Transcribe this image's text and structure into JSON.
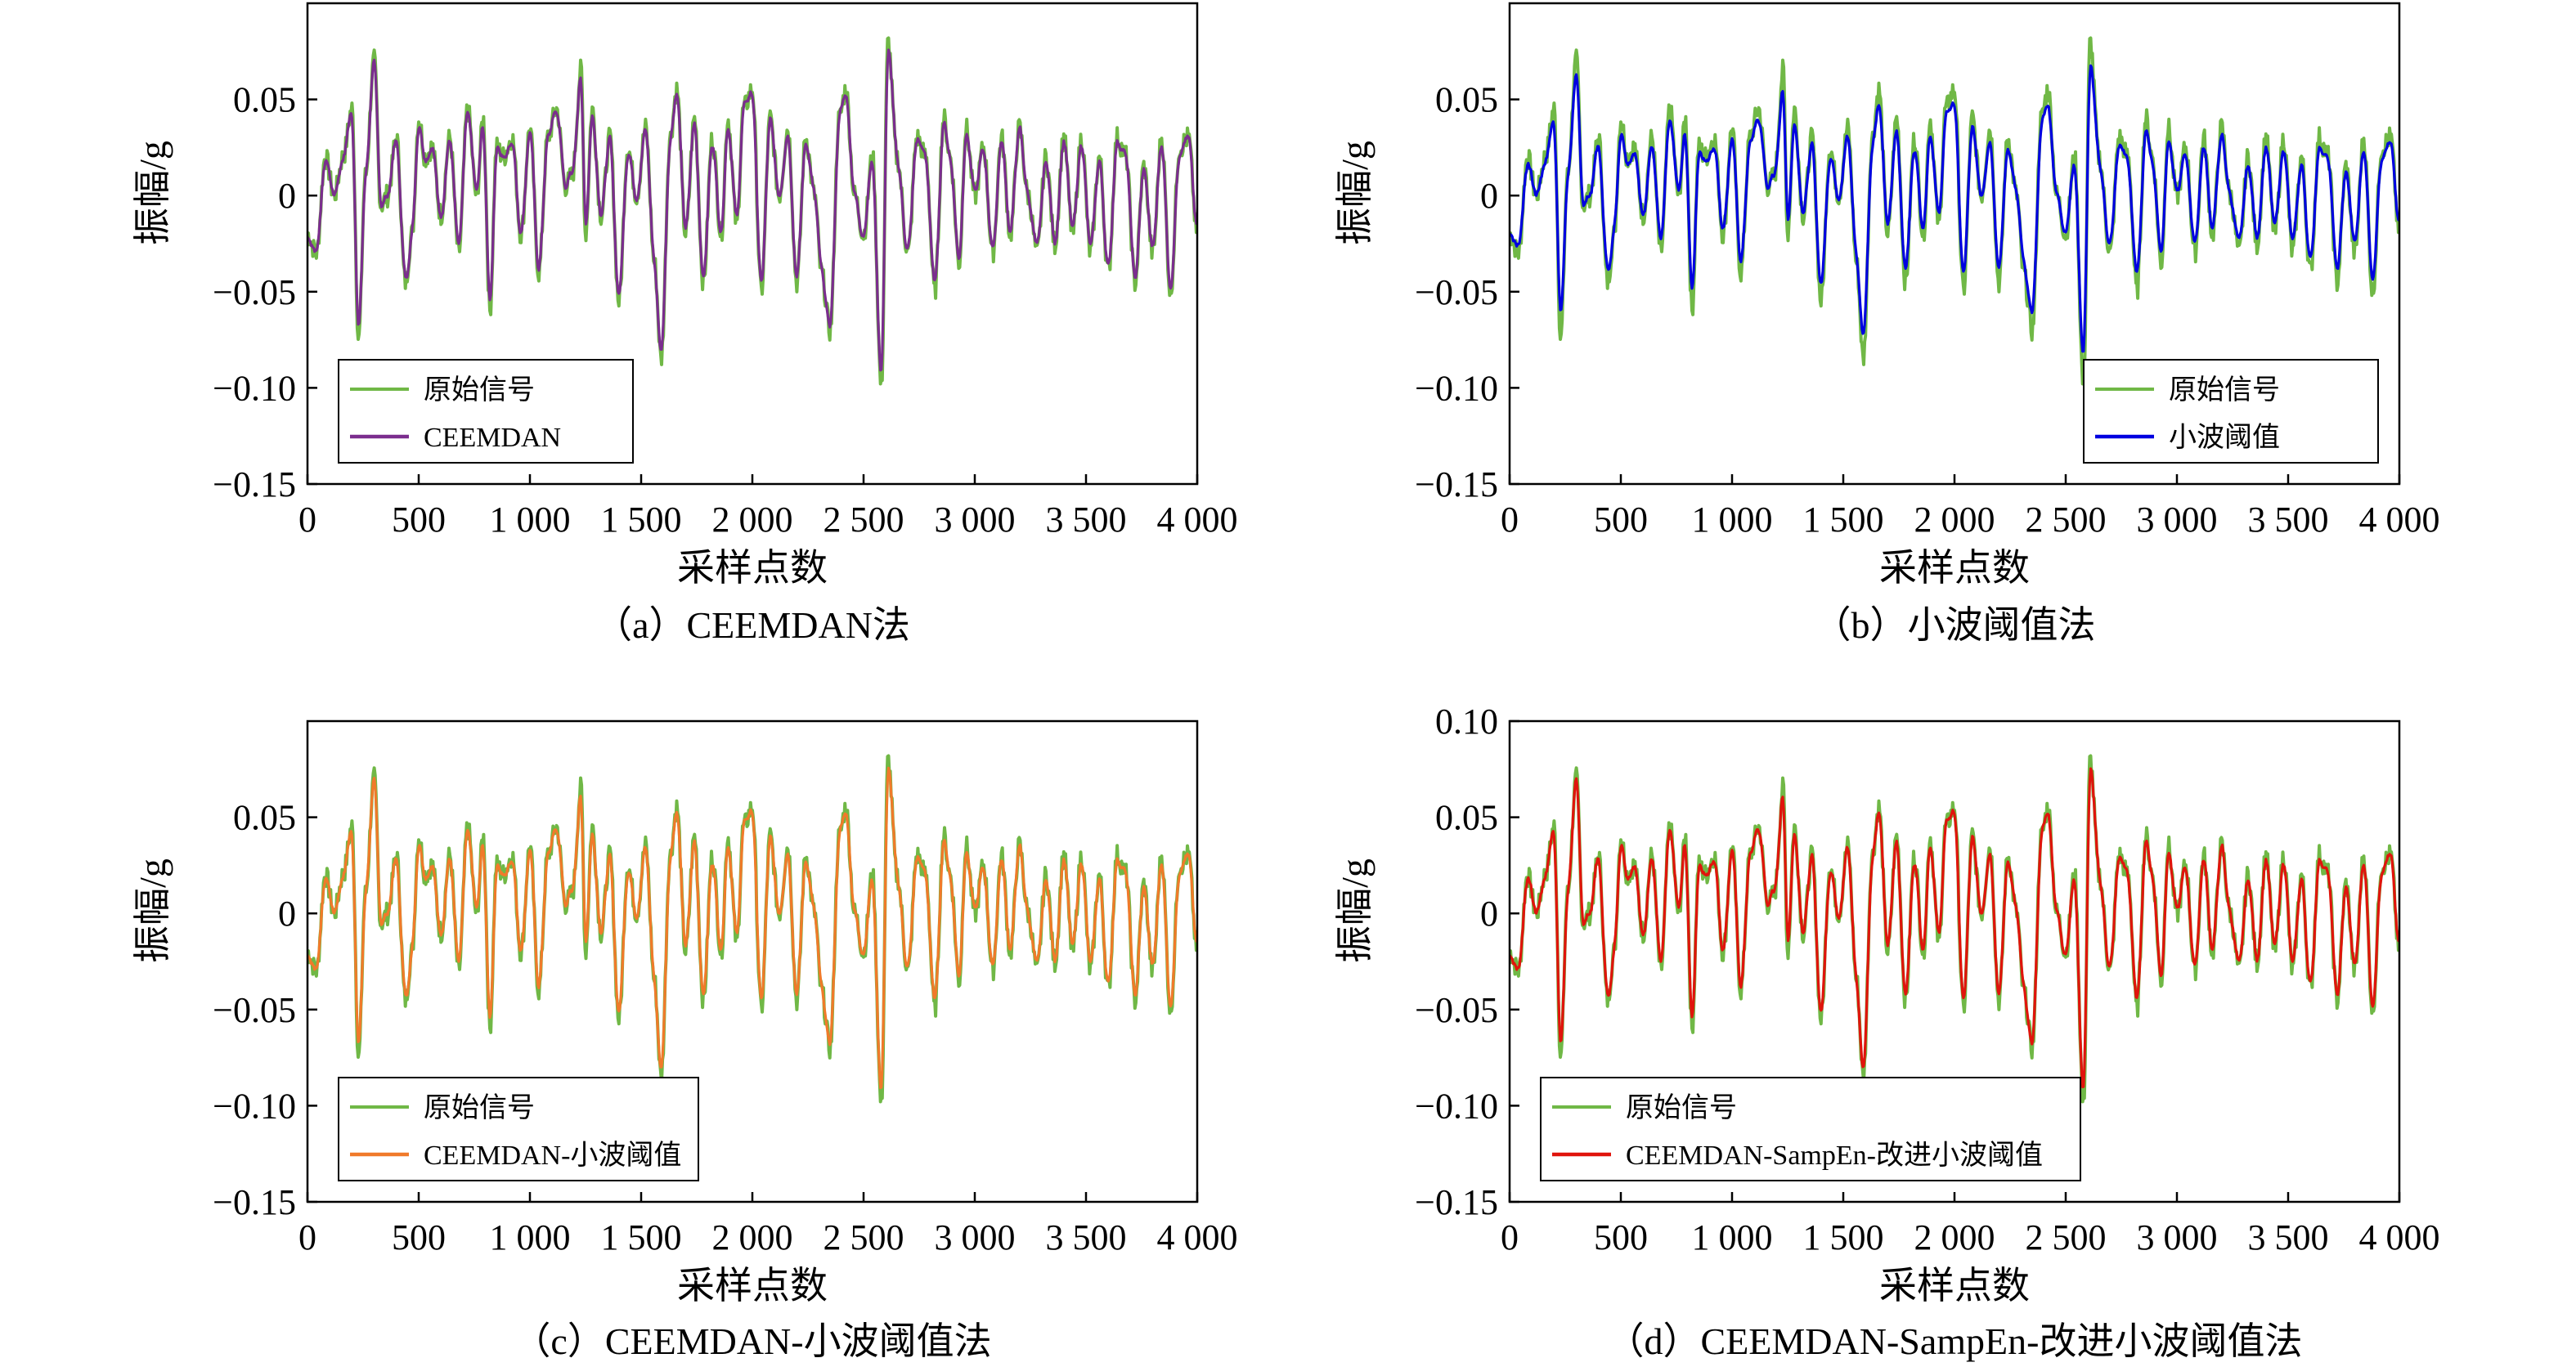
{
  "figure": {
    "panels": [
      {
        "caption": "（a）CEEMDAN法",
        "xlabel": "采样点数",
        "ylabel": "振幅/g",
        "xticks": [
          "0",
          "500",
          "1 000",
          "1 500",
          "2 000",
          "2 500",
          "3 000",
          "3 500",
          "4 000"
        ],
        "yticks": [
          "0.05",
          "0",
          "−0.05",
          "−0.10",
          "−0.15"
        ],
        "legend": [
          "原始信号",
          "CEEMDAN"
        ]
      },
      {
        "caption": "（b）小波阈值法",
        "xlabel": "采样点数",
        "ylabel": "振幅/g",
        "xticks": [
          "0",
          "500",
          "1 000",
          "1 500",
          "2 000",
          "2 500",
          "3 000",
          "3 500",
          "4 000"
        ],
        "yticks": [
          "0.05",
          "0",
          "−0.05",
          "−0.10",
          "−0.15"
        ],
        "legend": [
          "原始信号",
          "小波阈值"
        ]
      },
      {
        "caption": "（c）CEEMDAN-小波阈值法",
        "xlabel": "采样点数",
        "ylabel": "振幅/g",
        "xticks": [
          "0",
          "500",
          "1 000",
          "1 500",
          "2 000",
          "2 500",
          "3 000",
          "3 500",
          "4 000"
        ],
        "yticks": [
          "0.05",
          "0",
          "−0.05",
          "−0.10",
          "−0.15"
        ],
        "legend": [
          "原始信号",
          "CEEMDAN-小波阈值"
        ]
      },
      {
        "caption": "（d）CEEMDAN-SampEn-改进小波阈值法",
        "xlabel": "采样点数",
        "ylabel": "振幅/g",
        "xticks": [
          "0",
          "500",
          "1 000",
          "1 500",
          "2 000",
          "2 500",
          "3 000",
          "3 500",
          "4 000"
        ],
        "yticks": [
          "0.10",
          "0.05",
          "0",
          "−0.05",
          "−0.10",
          "−0.15"
        ],
        "legend": [
          "原始信号",
          "CEEMDAN-SampEn-改进小波阈值"
        ]
      }
    ]
  },
  "chart_data": [
    {
      "type": "line",
      "xlim": [
        0,
        4000
      ],
      "ylim": [
        -0.15,
        0.1
      ],
      "yticks": [
        0.05,
        0,
        -0.05,
        -0.1,
        -0.15
      ],
      "legend_position": "bottom-left",
      "grid": false,
      "series": [
        {
          "name": "原始信号",
          "color": "#70b846",
          "role": "original"
        },
        {
          "name": "CEEMDAN",
          "color": "#7b2d8e",
          "role": "denoised",
          "smoothing": 0.9
        }
      ]
    },
    {
      "type": "line",
      "xlim": [
        0,
        4000
      ],
      "ylim": [
        -0.15,
        0.1
      ],
      "yticks": [
        0.05,
        0,
        -0.05,
        -0.1,
        -0.15
      ],
      "legend_position": "bottom-right",
      "grid": false,
      "series": [
        {
          "name": "原始信号",
          "color": "#70b846",
          "role": "original"
        },
        {
          "name": "小波阈值",
          "color": "#0000e0",
          "role": "denoised",
          "smoothing": 0.6
        }
      ]
    },
    {
      "type": "line",
      "xlim": [
        0,
        4000
      ],
      "ylim": [
        -0.15,
        0.1
      ],
      "yticks": [
        0.05,
        0,
        -0.05,
        -0.1,
        -0.15
      ],
      "legend_position": "bottom-left",
      "grid": false,
      "series": [
        {
          "name": "原始信号",
          "color": "#70b846",
          "role": "original"
        },
        {
          "name": "CEEMDAN-小波阈值",
          "color": "#f07a2a",
          "role": "denoised",
          "smoothing": 0.92
        }
      ]
    },
    {
      "type": "line",
      "xlim": [
        0,
        4000
      ],
      "ylim": [
        -0.15,
        0.1
      ],
      "yticks": [
        0.1,
        0.05,
        0,
        -0.05,
        -0.1,
        -0.15
      ],
      "legend_position": "bottom-left",
      "grid": false,
      "series": [
        {
          "name": "原始信号",
          "color": "#70b846",
          "role": "original"
        },
        {
          "name": "CEEMDAN-SampEn-改进小波阈值",
          "color": "#e0140c",
          "role": "denoised",
          "smoothing": 0.97
        }
      ]
    }
  ],
  "signal": {
    "x": [
      0,
      40,
      80,
      120,
      160,
      200,
      230,
      260,
      300,
      330,
      360,
      400,
      440,
      470,
      500,
      530,
      560,
      600,
      640,
      680,
      720,
      760,
      790,
      820,
      850,
      880,
      920,
      960,
      1000,
      1040,
      1080,
      1120,
      1160,
      1190,
      1230,
      1250,
      1280,
      1320,
      1360,
      1400,
      1440,
      1480,
      1520,
      1560,
      1590,
      1630,
      1660,
      1700,
      1740,
      1780,
      1820,
      1860,
      1890,
      1930,
      1960,
      2000,
      2040,
      2080,
      2120,
      2160,
      2200,
      2240,
      2280,
      2310,
      2350,
      2390,
      2420,
      2460,
      2500,
      2540,
      2580,
      2610,
      2650,
      2700,
      2740,
      2780,
      2820,
      2860,
      2890,
      2930,
      2960,
      3000,
      3040,
      3080,
      3120,
      3160,
      3200,
      3240,
      3280,
      3320,
      3360,
      3400,
      3440,
      3480,
      3520,
      3560,
      3600,
      3640,
      3680,
      3720,
      3760,
      3800,
      3840,
      3880,
      3920,
      3960,
      4000
    ],
    "y": [
      -0.02,
      -0.03,
      0.02,
      0.0,
      0.02,
      0.045,
      -0.075,
      0.01,
      0.07,
      -0.005,
      0.0,
      0.03,
      -0.045,
      -0.02,
      0.04,
      0.02,
      0.025,
      -0.01,
      0.03,
      -0.03,
      0.045,
      0.0,
      0.04,
      -0.06,
      0.025,
      0.02,
      0.03,
      -0.02,
      0.035,
      -0.04,
      0.03,
      0.045,
      0.005,
      0.01,
      0.065,
      -0.02,
      0.045,
      -0.01,
      0.03,
      -0.055,
      0.025,
      0.0,
      0.035,
      -0.035,
      -0.085,
      0.03,
      0.055,
      -0.02,
      0.04,
      -0.045,
      0.03,
      -0.02,
      0.04,
      -0.015,
      0.045,
      0.055,
      -0.05,
      0.04,
      0.0,
      0.035,
      -0.045,
      0.03,
      0.0,
      -0.04,
      -0.07,
      0.04,
      0.055,
      0.0,
      -0.02,
      0.02,
      -0.1,
      0.08,
      0.02,
      -0.03,
      0.03,
      0.02,
      -0.05,
      0.04,
      0.02,
      -0.035,
      0.035,
      0.0,
      0.025,
      -0.03,
      0.03,
      -0.02,
      0.035,
      0.0,
      -0.03,
      0.02,
      -0.025,
      0.03,
      -0.02,
      0.03,
      -0.03,
      0.02,
      -0.04,
      0.03,
      0.02,
      -0.045,
      0.015,
      -0.03,
      0.03,
      -0.05,
      0.025,
      0.03,
      -0.02
    ]
  }
}
